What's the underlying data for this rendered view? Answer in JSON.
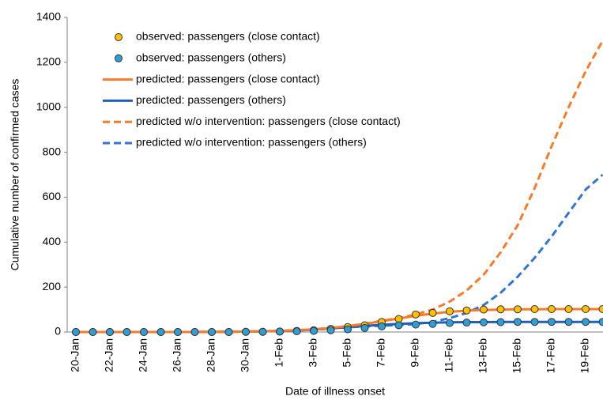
{
  "chart_data": {
    "type": "line",
    "x_label": "Date of illness onset",
    "y_label": "Cumulative number of confirmed cases",
    "categories": [
      "20-Jan",
      null,
      "22-Jan",
      null,
      "24-Jan",
      null,
      "26-Jan",
      null,
      "28-Jan",
      null,
      "30-Jan",
      null,
      "1-Feb",
      null,
      "3-Feb",
      null,
      "5-Feb",
      null,
      "7-Feb",
      null,
      "9-Feb",
      null,
      "11-Feb",
      null,
      "13-Feb",
      null,
      "15-Feb",
      null,
      "17-Feb",
      null,
      "19-Feb",
      null
    ],
    "ylim": [
      0,
      1400
    ],
    "yticks": [
      0,
      200,
      400,
      600,
      800,
      1000,
      1200,
      1400
    ],
    "legend": "upper left",
    "series": [
      {
        "name": "observed: passengers (close contact)",
        "color": "#ffc000",
        "marker": "circle",
        "values": [
          0,
          0,
          0,
          0,
          0,
          0,
          0,
          0,
          0,
          0,
          1,
          1,
          2,
          5,
          8,
          14,
          22,
          30,
          45,
          58,
          78,
          85,
          92,
          96,
          100,
          101,
          101,
          102,
          102,
          102,
          102,
          102
        ]
      },
      {
        "name": "observed: passengers (others)",
        "color": "#2e9fd6",
        "marker": "circle",
        "values": [
          0,
          0,
          0,
          0,
          0,
          0,
          0,
          0,
          0,
          0,
          1,
          1,
          2,
          3,
          5,
          8,
          12,
          18,
          25,
          30,
          33,
          36,
          40,
          42,
          43,
          44,
          45,
          45,
          45,
          45,
          45,
          45
        ]
      },
      {
        "name": "predicted: passengers (close contact)",
        "color": "#f97b2a",
        "dashed": false,
        "values": [
          0,
          0,
          0,
          0,
          0,
          0,
          0,
          0,
          1,
          1,
          2,
          3,
          5,
          8,
          12,
          18,
          26,
          36,
          48,
          60,
          72,
          82,
          90,
          95,
          98,
          100,
          101,
          101,
          102,
          102,
          102,
          102
        ]
      },
      {
        "name": "predicted: passengers (others)",
        "color": "#1f5fbf",
        "dashed": false,
        "values": [
          0,
          0,
          0,
          0,
          0,
          0,
          0,
          0,
          1,
          1,
          2,
          3,
          5,
          7,
          11,
          16,
          22,
          27,
          32,
          36,
          39,
          41,
          43,
          44,
          44,
          45,
          45,
          45,
          45,
          45,
          45,
          45
        ]
      },
      {
        "name": "predicted w/o intervention: passengers (close contact)",
        "color": "#f97b2a",
        "dashed": true,
        "values": [
          0,
          0,
          0,
          0,
          0,
          0,
          0,
          0,
          1,
          1,
          2,
          3,
          5,
          8,
          12,
          18,
          26,
          37,
          50,
          62,
          78,
          100,
          135,
          185,
          255,
          355,
          475,
          640,
          827,
          1000,
          1160,
          1296
        ]
      },
      {
        "name": "predicted w/o intervention: passengers (others)",
        "color": "#2e75d6",
        "dashed": true,
        "values": [
          0,
          0,
          0,
          0,
          0,
          0,
          0,
          0,
          1,
          1,
          2,
          3,
          5,
          7,
          11,
          16,
          21,
          25,
          28,
          31,
          36,
          45,
          62,
          85,
          120,
          175,
          246,
          330,
          425,
          530,
          634,
          700
        ]
      }
    ]
  }
}
